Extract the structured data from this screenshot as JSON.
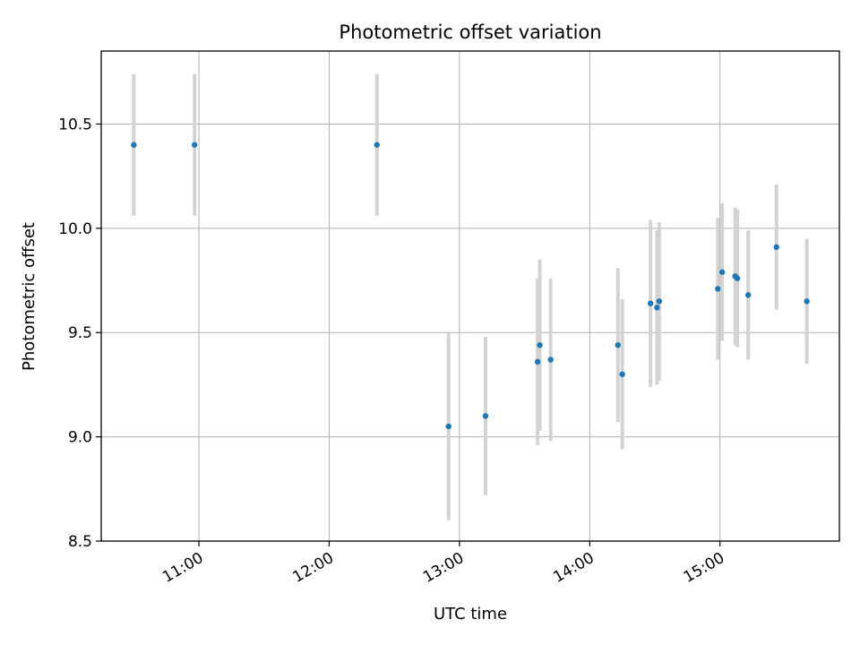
{
  "chart_data": {
    "type": "scatter",
    "title": "Photometric offset variation",
    "xlabel": "UTC time",
    "ylabel": "Photometric offset",
    "x_axis_kind": "time",
    "xlim": [
      "10:15",
      "15:55"
    ],
    "ylim": [
      8.5,
      10.85
    ],
    "x_ticks": [
      "11:00",
      "12:00",
      "13:00",
      "14:00",
      "15:00"
    ],
    "y_ticks": [
      "8.5",
      "9.0",
      "9.5",
      "10.0",
      "10.5"
    ],
    "grid": true,
    "marker_color": "#1f77b4",
    "errorbar_color": "#d3d3d3",
    "points": [
      {
        "x": "10:30",
        "y": 10.4,
        "err": 0.34
      },
      {
        "x": "10:58",
        "y": 10.4,
        "err": 0.34
      },
      {
        "x": "12:22",
        "y": 10.4,
        "err": 0.34
      },
      {
        "x": "12:55",
        "y": 9.05,
        "err": 0.45
      },
      {
        "x": "13:12",
        "y": 9.1,
        "err": 0.38
      },
      {
        "x": "13:36",
        "y": 9.36,
        "err": 0.4
      },
      {
        "x": "13:37",
        "y": 9.44,
        "err": 0.41
      },
      {
        "x": "13:42",
        "y": 9.37,
        "err": 0.39
      },
      {
        "x": "14:13",
        "y": 9.44,
        "err": 0.37
      },
      {
        "x": "14:15",
        "y": 9.3,
        "err": 0.36
      },
      {
        "x": "14:28",
        "y": 9.64,
        "err": 0.4
      },
      {
        "x": "14:31",
        "y": 9.62,
        "err": 0.37
      },
      {
        "x": "14:32",
        "y": 9.65,
        "err": 0.38
      },
      {
        "x": "14:59",
        "y": 9.71,
        "err": 0.34
      },
      {
        "x": "15:01",
        "y": 9.79,
        "err": 0.33
      },
      {
        "x": "15:07",
        "y": 9.77,
        "err": 0.33
      },
      {
        "x": "15:08",
        "y": 9.76,
        "err": 0.33
      },
      {
        "x": "15:13",
        "y": 9.68,
        "err": 0.31
      },
      {
        "x": "15:26",
        "y": 9.91,
        "err": 0.3
      },
      {
        "x": "15:40",
        "y": 9.65,
        "err": 0.3
      }
    ]
  }
}
